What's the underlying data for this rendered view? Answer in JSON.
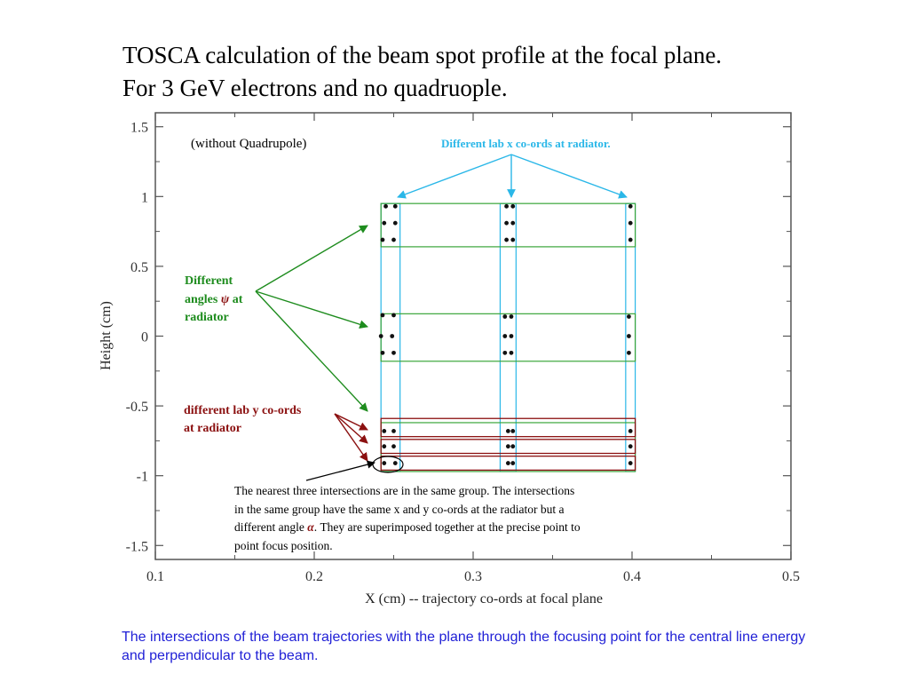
{
  "slide": {
    "title_line1": "TOSCA calculation of the beam spot profile at the focal plane.",
    "title_line2": "For 3 GeV electrons and no quadruople.",
    "caption": "The intersections of the beam trajectories with the plane through the focusing point for the central line energy and perpendicular to the beam."
  },
  "colors": {
    "cyan": "#2ab7e8",
    "green": "#1e8c1e",
    "darkred": "#8b1010",
    "caption_blue": "#1f1fd6",
    "axis": "#555555"
  },
  "chart_data": {
    "type": "scatter",
    "xlabel": "X (cm) -- trajectory co-ords at focal plane",
    "ylabel": "Height (cm)",
    "xlim": [
      0.1,
      0.5
    ],
    "ylim": [
      -1.6,
      1.6
    ],
    "xticks": [
      0.1,
      0.2,
      0.3,
      0.4,
      0.5
    ],
    "xtick_labels": [
      "0.1",
      "0.2",
      "0.3",
      "0.4",
      "0.5"
    ],
    "yticks": [
      -1.5,
      -1,
      -0.5,
      0,
      0.5,
      1,
      1.5
    ],
    "ytick_labels": [
      "-1.5",
      "-1",
      "-0.5",
      "0",
      "0.5",
      "1",
      "1.5"
    ],
    "grid": false,
    "series": [
      {
        "x": [
          0.245,
          0.251,
          0.244,
          0.251,
          0.243,
          0.25,
          0.321,
          0.325,
          0.321,
          0.325,
          0.321,
          0.325,
          0.399,
          0.399,
          0.399,
          0.243,
          0.25,
          0.242,
          0.249,
          0.243,
          0.25,
          0.32,
          0.324,
          0.32,
          0.324,
          0.32,
          0.324,
          0.398,
          0.398,
          0.398,
          0.244,
          0.25,
          0.244,
          0.25,
          0.244,
          0.251,
          0.322,
          0.325,
          0.322,
          0.325,
          0.322,
          0.325,
          0.399,
          0.399,
          0.399
        ],
        "y": [
          0.93,
          0.93,
          0.81,
          0.81,
          0.69,
          0.69,
          0.93,
          0.93,
          0.81,
          0.81,
          0.69,
          0.69,
          0.93,
          0.81,
          0.69,
          0.15,
          0.15,
          0.0,
          0.0,
          -0.12,
          -0.12,
          0.14,
          0.14,
          0.0,
          0.0,
          -0.12,
          -0.12,
          0.14,
          0.0,
          -0.12,
          -0.68,
          -0.68,
          -0.79,
          -0.79,
          -0.91,
          -0.91,
          -0.68,
          -0.68,
          -0.79,
          -0.79,
          -0.91,
          -0.91,
          -0.68,
          -0.79,
          -0.91
        ]
      }
    ],
    "group_boxes": {
      "x_ranges": [
        [
          0.242,
          0.254
        ],
        [
          0.317,
          0.327
        ],
        [
          0.396,
          0.402
        ]
      ],
      "angle_groups_y": [
        [
          0.64,
          0.95
        ],
        [
          -0.18,
          0.16
        ],
        [
          -0.97,
          -0.62
        ]
      ],
      "y_coord_rows": [
        [
          -0.72,
          -0.59
        ],
        [
          -0.84,
          -0.74
        ],
        [
          -0.96,
          -0.86
        ]
      ]
    },
    "annotations": {
      "without_quad": "(without Quadrupole)",
      "lab_x": "Different lab x co-ords at radiator.",
      "angles_line1": "Different",
      "angles_line2_pre": "angles ",
      "angles_symbol": "ψ",
      "angles_line2_post": " at",
      "angles_line3": "radiator",
      "lab_y_line1": "different lab y co-ords",
      "lab_y_line2": "at radiator",
      "note_line1": "The nearest three intersections are in the same group. The intersections",
      "note_line2": "in the same group have the same x and y co-ords at the radiator but a",
      "note_line3_pre": "different angle ",
      "note_symbol": "α",
      "note_line3_post": ". They are superimposed together at the precise point to",
      "note_line4": "point focus position."
    }
  }
}
